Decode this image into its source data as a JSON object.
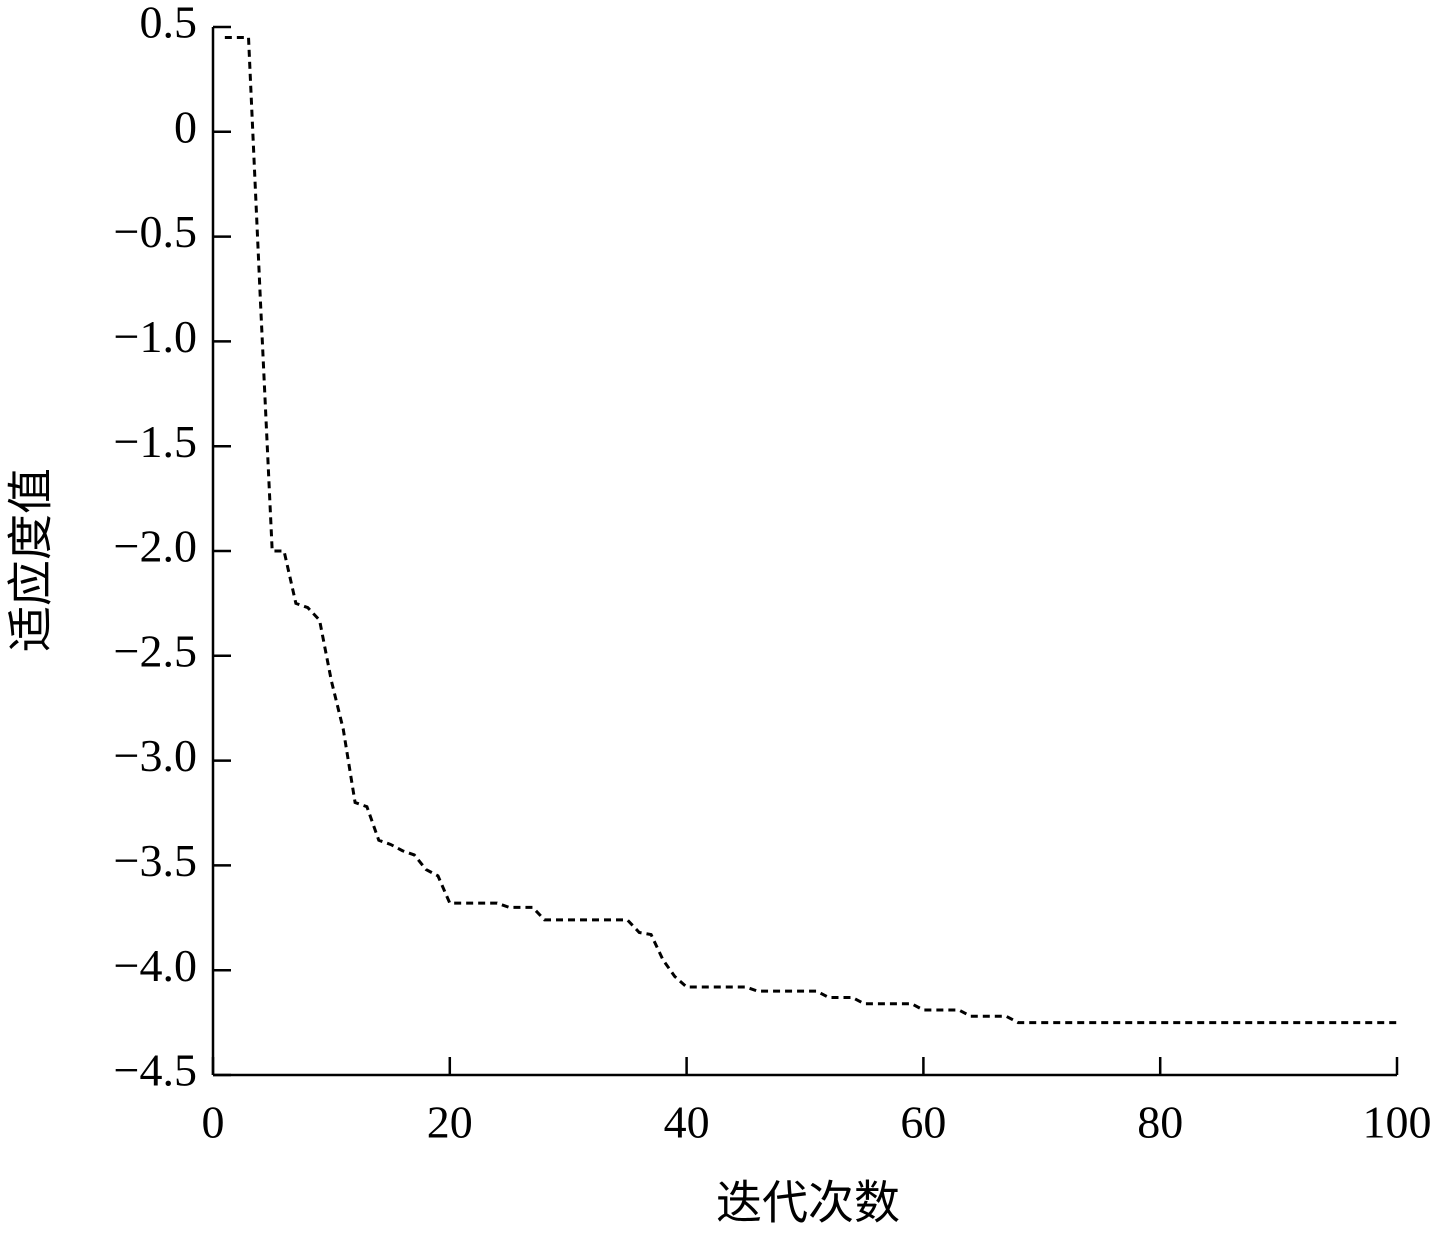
{
  "chart_data": {
    "type": "line",
    "xlabel": "迭代次数",
    "ylabel": "适应度值",
    "x": [
      1,
      3,
      4,
      5,
      6,
      7,
      8,
      9,
      10,
      11,
      12,
      13,
      14,
      15,
      16,
      17,
      18,
      19,
      20,
      24,
      25,
      27,
      28,
      35,
      36,
      37,
      38,
      39,
      40,
      45,
      46,
      51,
      52,
      54,
      55,
      59,
      60,
      63,
      64,
      67,
      68,
      100
    ],
    "series": [
      {
        "color": "#000000",
        "dashed": true,
        "values": [
          0.45,
          0.45,
          -0.8,
          -2.0,
          -2.0,
          -2.25,
          -2.27,
          -2.33,
          -2.62,
          -2.85,
          -3.2,
          -3.22,
          -3.38,
          -3.4,
          -3.43,
          -3.45,
          -3.52,
          -3.55,
          -3.68,
          -3.68,
          -3.7,
          -3.7,
          -3.76,
          -3.76,
          -3.82,
          -3.83,
          -3.95,
          -4.03,
          -4.08,
          -4.08,
          -4.1,
          -4.1,
          -4.13,
          -4.13,
          -4.16,
          -4.16,
          -4.19,
          -4.19,
          -4.22,
          -4.22,
          -4.25,
          -4.25
        ]
      }
    ],
    "xlim": [
      0,
      100
    ],
    "xticks": [
      0,
      20,
      40,
      60,
      80,
      100
    ],
    "ylim": [
      -4.5,
      0.5
    ],
    "yticks": [
      {
        "value": -4.5,
        "label": "−4.5"
      },
      {
        "value": -4,
        "label": "−4.0"
      },
      {
        "value": -3.5,
        "label": "−3.5"
      },
      {
        "value": -3,
        "label": "−3.0"
      },
      {
        "value": -2.5,
        "label": "−2.5"
      },
      {
        "value": -2,
        "label": "−2.0"
      },
      {
        "value": -1.5,
        "label": "−1.5"
      },
      {
        "value": -1,
        "label": "−1.0"
      },
      {
        "value": -0.5,
        "label": "−0.5"
      },
      0,
      0.5
    ],
    "grid": false
  }
}
